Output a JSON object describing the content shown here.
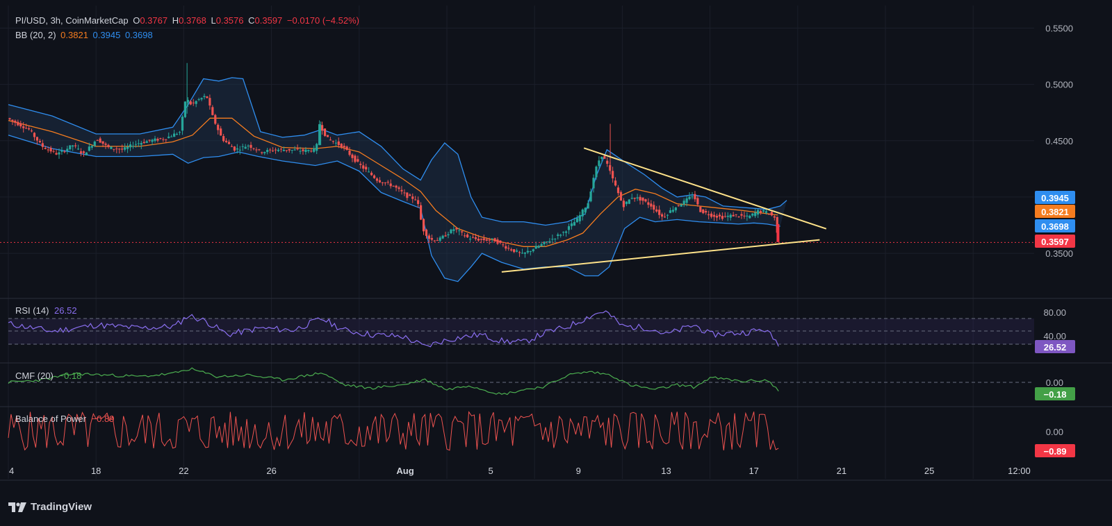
{
  "header": {
    "symbol": "PI/USD, 3h, CoinMarketCap",
    "o_label": "O",
    "o_value": "0.3767",
    "h_label": "H",
    "h_value": "0.3768",
    "l_label": "L",
    "l_value": "0.3576",
    "c_label": "C",
    "c_value": "0.3597",
    "change": "−0.0170 (−4.52%)",
    "bb_label": "BB (20, 2)",
    "bb_basis": "0.3821",
    "bb_upper": "0.3945",
    "bb_lower": "0.3698"
  },
  "indicators": {
    "rsi_label": "RSI (14)",
    "rsi_value": "26.52",
    "cmf_label": "CMF (20)",
    "cmf_value": "−0.18",
    "bop_label": "Balance of Power",
    "bop_value": "−0.89"
  },
  "brand": {
    "name": "TradingView",
    "logo_icon": "tradingview-logo-icon"
  },
  "colors": {
    "background": "#0f121a",
    "up": "#26a69a",
    "down": "#ef5350",
    "bb_band": "#2f8ef0",
    "bb_basis": "#f57c1f",
    "trendline": "#ffe38a",
    "rsi": "#8a6ff0",
    "cmf": "#4caf50",
    "bop": "#ef5350"
  },
  "chart_data": [
    {
      "type": "line",
      "subtype": "candlestick",
      "title": "PI/USD, 3h, CoinMarketCap",
      "ylim": [
        0.31,
        0.562
      ],
      "y_ticks": [
        "0.5500",
        "0.5000",
        "0.4500",
        "0.3500"
      ],
      "x_ticks": [
        "4",
        "18",
        "22",
        "26",
        "Aug",
        "5",
        "9",
        "13",
        "17",
        "21",
        "25",
        "12:00"
      ],
      "price_badges": [
        {
          "value": "0.3945",
          "color": "#2f8ef0"
        },
        {
          "value": "0.3821",
          "color": "#f57c1f"
        },
        {
          "value": "0.3698",
          "color": "#2f8ef0"
        },
        {
          "value": "0.3597",
          "color": "#f23645"
        }
      ],
      "current_price": 0.3597,
      "price_path": [
        [
          0,
          0.47
        ],
        [
          1,
          0.46
        ],
        [
          1.6,
          0.445
        ],
        [
          2.3,
          0.438
        ],
        [
          3,
          0.446
        ],
        [
          3.5,
          0.438
        ],
        [
          4.1,
          0.452
        ],
        [
          4.6,
          0.444
        ],
        [
          5.3,
          0.442
        ],
        [
          5.8,
          0.447
        ],
        [
          6.5,
          0.45
        ],
        [
          7.2,
          0.452
        ],
        [
          7.9,
          0.458
        ],
        [
          8.15,
          0.488
        ],
        [
          8.4,
          0.482
        ],
        [
          8.7,
          0.486
        ],
        [
          9.1,
          0.49
        ],
        [
          9.4,
          0.47
        ],
        [
          9.8,
          0.452
        ],
        [
          10.4,
          0.442
        ],
        [
          11,
          0.446
        ],
        [
          11.6,
          0.44
        ],
        [
          12.2,
          0.442
        ],
        [
          12.8,
          0.442
        ],
        [
          13.5,
          0.441
        ],
        [
          14.1,
          0.442
        ],
        [
          14.25,
          0.465
        ],
        [
          14.6,
          0.452
        ],
        [
          15.3,
          0.445
        ],
        [
          16,
          0.43
        ],
        [
          16.9,
          0.415
        ],
        [
          17.6,
          0.41
        ],
        [
          18.3,
          0.4
        ],
        [
          18.7,
          0.398
        ],
        [
          18.95,
          0.372
        ],
        [
          19.3,
          0.362
        ],
        [
          19.7,
          0.362
        ],
        [
          20.4,
          0.372
        ],
        [
          21,
          0.364
        ],
        [
          21.6,
          0.362
        ],
        [
          22.2,
          0.362
        ],
        [
          22.8,
          0.355
        ],
        [
          23.5,
          0.349
        ],
        [
          24.2,
          0.356
        ],
        [
          24.8,
          0.362
        ],
        [
          25.4,
          0.369
        ],
        [
          26,
          0.38
        ],
        [
          26.5,
          0.395
        ],
        [
          26.8,
          0.422
        ],
        [
          27.1,
          0.438
        ],
        [
          27.35,
          0.43
        ],
        [
          27.7,
          0.412
        ],
        [
          28.1,
          0.392
        ],
        [
          28.5,
          0.4
        ],
        [
          28.9,
          0.398
        ],
        [
          29.4,
          0.392
        ],
        [
          29.9,
          0.382
        ],
        [
          30.4,
          0.39
        ],
        [
          30.9,
          0.396
        ],
        [
          31.3,
          0.402
        ],
        [
          31.6,
          0.388
        ],
        [
          32.1,
          0.384
        ],
        [
          32.6,
          0.382
        ],
        [
          33.2,
          0.384
        ],
        [
          33.8,
          0.382
        ],
        [
          34.3,
          0.388
        ],
        [
          34.7,
          0.386
        ],
        [
          35.0,
          0.382
        ],
        [
          35.15,
          0.365
        ]
      ],
      "bb_upper": [
        [
          0,
          0.482
        ],
        [
          2,
          0.472
        ],
        [
          4,
          0.456
        ],
        [
          6,
          0.456
        ],
        [
          7.5,
          0.462
        ],
        [
          8.2,
          0.482
        ],
        [
          8.9,
          0.505
        ],
        [
          9.6,
          0.503
        ],
        [
          10.2,
          0.506
        ],
        [
          10.7,
          0.505
        ],
        [
          11.5,
          0.458
        ],
        [
          12.5,
          0.453
        ],
        [
          13.5,
          0.455
        ],
        [
          14.3,
          0.46
        ],
        [
          15,
          0.455
        ],
        [
          16,
          0.458
        ],
        [
          17,
          0.445
        ],
        [
          18,
          0.425
        ],
        [
          18.8,
          0.415
        ],
        [
          19.3,
          0.433
        ],
        [
          19.9,
          0.448
        ],
        [
          20.5,
          0.438
        ],
        [
          21.1,
          0.4
        ],
        [
          21.6,
          0.382
        ],
        [
          22.5,
          0.378
        ],
        [
          23.5,
          0.378
        ],
        [
          24.5,
          0.375
        ],
        [
          25.5,
          0.378
        ],
        [
          26.3,
          0.385
        ],
        [
          26.8,
          0.418
        ],
        [
          27.3,
          0.442
        ],
        [
          28.2,
          0.43
        ],
        [
          29,
          0.42
        ],
        [
          29.8,
          0.408
        ],
        [
          30.5,
          0.4
        ],
        [
          31.2,
          0.402
        ],
        [
          31.8,
          0.4
        ],
        [
          32.6,
          0.392
        ],
        [
          33.3,
          0.391
        ],
        [
          34,
          0.39
        ],
        [
          34.6,
          0.389
        ],
        [
          35.2,
          0.392
        ],
        [
          35.5,
          0.397
        ]
      ],
      "bb_basis": [
        [
          0,
          0.468
        ],
        [
          2,
          0.458
        ],
        [
          4,
          0.445
        ],
        [
          6,
          0.445
        ],
        [
          7.5,
          0.449
        ],
        [
          8.4,
          0.455
        ],
        [
          9.2,
          0.47
        ],
        [
          10.2,
          0.47
        ],
        [
          11.2,
          0.454
        ],
        [
          12.5,
          0.444
        ],
        [
          14,
          0.443
        ],
        [
          15,
          0.445
        ],
        [
          16,
          0.44
        ],
        [
          17,
          0.428
        ],
        [
          18,
          0.416
        ],
        [
          18.8,
          0.405
        ],
        [
          19.5,
          0.388
        ],
        [
          20.5,
          0.372
        ],
        [
          21.5,
          0.365
        ],
        [
          22.5,
          0.36
        ],
        [
          23.5,
          0.356
        ],
        [
          24.5,
          0.356
        ],
        [
          25.5,
          0.362
        ],
        [
          26.2,
          0.368
        ],
        [
          27,
          0.385
        ],
        [
          27.8,
          0.4
        ],
        [
          28.6,
          0.407
        ],
        [
          29.5,
          0.403
        ],
        [
          30.5,
          0.394
        ],
        [
          31.5,
          0.392
        ],
        [
          32.5,
          0.39
        ],
        [
          33.5,
          0.388
        ],
        [
          34.3,
          0.386
        ],
        [
          35.1,
          0.384
        ]
      ],
      "bb_lower": [
        [
          0,
          0.455
        ],
        [
          2,
          0.443
        ],
        [
          4,
          0.436
        ],
        [
          6,
          0.436
        ],
        [
          7.5,
          0.438
        ],
        [
          8.2,
          0.43
        ],
        [
          8.9,
          0.435
        ],
        [
          9.6,
          0.436
        ],
        [
          10.5,
          0.44
        ],
        [
          11.4,
          0.436
        ],
        [
          12.5,
          0.432
        ],
        [
          14,
          0.428
        ],
        [
          15,
          0.432
        ],
        [
          16,
          0.423
        ],
        [
          17,
          0.404
        ],
        [
          18,
          0.396
        ],
        [
          18.8,
          0.39
        ],
        [
          19.3,
          0.348
        ],
        [
          19.9,
          0.328
        ],
        [
          20.5,
          0.325
        ],
        [
          21.1,
          0.338
        ],
        [
          21.6,
          0.35
        ],
        [
          22.5,
          0.342
        ],
        [
          23.5,
          0.336
        ],
        [
          24.5,
          0.338
        ],
        [
          25.5,
          0.338
        ],
        [
          26.3,
          0.33
        ],
        [
          26.9,
          0.33
        ],
        [
          27.4,
          0.338
        ],
        [
          28.1,
          0.372
        ],
        [
          28.8,
          0.382
        ],
        [
          29.5,
          0.378
        ],
        [
          30.5,
          0.38
        ],
        [
          31.5,
          0.378
        ],
        [
          32.5,
          0.377
        ],
        [
          33.3,
          0.376
        ],
        [
          34,
          0.377
        ],
        [
          34.6,
          0.376
        ],
        [
          35.2,
          0.374
        ]
      ],
      "trendlines": [
        {
          "from": [
            26.25,
            0.4435
          ],
          "to": [
            37.3,
            0.3718
          ]
        },
        {
          "from": [
            22.5,
            0.3335
          ],
          "to": [
            37.0,
            0.362
          ]
        }
      ]
    },
    {
      "type": "line",
      "title": "RSI (14)",
      "ylim": [
        0,
        100
      ],
      "y_ticks": [
        "80.00",
        "40.00"
      ],
      "bands": [
        70,
        50,
        30
      ],
      "current": 26.52,
      "series": [
        [
          0,
          62
        ],
        [
          2,
          50
        ],
        [
          4,
          60
        ],
        [
          6,
          55
        ],
        [
          7.6,
          58
        ],
        [
          8.2,
          75
        ],
        [
          9,
          66
        ],
        [
          10,
          45
        ],
        [
          11.5,
          55
        ],
        [
          13,
          52
        ],
        [
          14.3,
          70
        ],
        [
          15.3,
          52
        ],
        [
          16.5,
          45
        ],
        [
          18,
          42
        ],
        [
          19,
          26
        ],
        [
          19.8,
          35
        ],
        [
          20.5,
          40
        ],
        [
          21.5,
          45
        ],
        [
          22.5,
          35
        ],
        [
          23.5,
          33
        ],
        [
          24.5,
          48
        ],
        [
          25.5,
          57
        ],
        [
          26.6,
          75
        ],
        [
          27.2,
          82
        ],
        [
          28,
          58
        ],
        [
          29.3,
          55
        ],
        [
          30,
          45
        ],
        [
          31.3,
          60
        ],
        [
          32,
          45
        ],
        [
          33.5,
          48
        ],
        [
          34.5,
          53
        ],
        [
          35.15,
          30
        ]
      ]
    },
    {
      "type": "line",
      "title": "CMF (20)",
      "ylim": [
        -0.5,
        0.5
      ],
      "y_ticks": [
        "0.00"
      ],
      "current": -0.18,
      "series": [
        [
          0,
          0.0
        ],
        [
          1.5,
          0.05
        ],
        [
          3,
          0.18
        ],
        [
          4.5,
          0.15
        ],
        [
          6,
          0.12
        ],
        [
          7.5,
          0.18
        ],
        [
          8.3,
          0.28
        ],
        [
          9.5,
          0.12
        ],
        [
          11,
          0.15
        ],
        [
          12.5,
          0.05
        ],
        [
          14.3,
          0.2
        ],
        [
          15.3,
          -0.05
        ],
        [
          16.5,
          -0.12
        ],
        [
          18,
          -0.05
        ],
        [
          19,
          0.06
        ],
        [
          20,
          -0.15
        ],
        [
          21,
          -0.06
        ],
        [
          22.5,
          -0.25
        ],
        [
          23.5,
          -0.15
        ],
        [
          24.5,
          -0.08
        ],
        [
          25.5,
          0.15
        ],
        [
          26.5,
          0.22
        ],
        [
          27.5,
          0.15
        ],
        [
          28.3,
          -0.05
        ],
        [
          29.5,
          -0.15
        ],
        [
          30.5,
          -0.05
        ],
        [
          31.3,
          -0.1
        ],
        [
          32,
          0.1
        ],
        [
          33.5,
          0.02
        ],
        [
          34.6,
          0.05
        ],
        [
          35.15,
          -0.18
        ]
      ]
    },
    {
      "type": "line",
      "title": "Balance of Power",
      "ylim": [
        -1,
        1
      ],
      "y_ticks": [
        "0.00"
      ],
      "current": -0.89,
      "series": "oscillating values between about -1 and 1"
    }
  ]
}
